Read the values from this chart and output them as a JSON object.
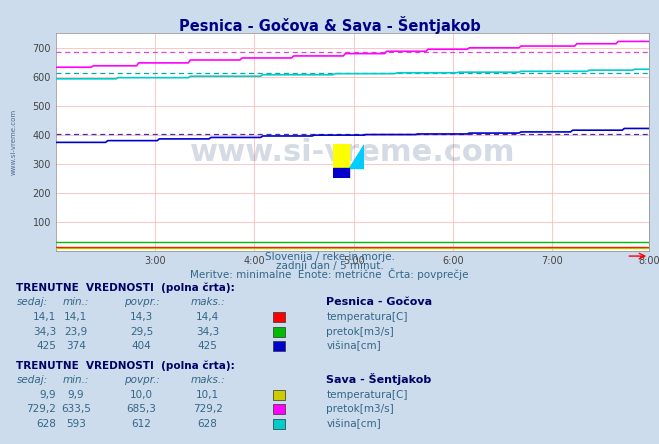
{
  "title": "Pesnica - Gočova & Sava - Šentjakob",
  "background_color": "#ccdcec",
  "plot_bg_color": "#ffffff",
  "grid_color": "#ffbbbb",
  "x_ticks": [
    "3:00",
    "4:00",
    "5:00",
    "6:00",
    "7:00",
    "8:00"
  ],
  "ylim": [
    0,
    750
  ],
  "n_points": 288,
  "subtitle1": "Slovenija / reke in morje.",
  "subtitle2": "zadnji dan / 5 minut.",
  "subtitle3": "Meritve: minimalne  Enote: metrične  Črta: povprečje",
  "watermark": "www.si-vreme.com",
  "pesnica_temp_val": 14.3,
  "pesnica_pretok_val": 29.5,
  "pesnica_visina_avg": 404,
  "sava_temp_val": 10.0,
  "sava_pretok_avg": 685.3,
  "sava_visina_avg": 612,
  "section1_title": "TRENUTNE  VREDNOSTI  (polna črta):",
  "section1_station": "Pesnica - Gočova",
  "section1_headers": [
    "sedaj:",
    "min.:",
    "povpr.:",
    "maks.:"
  ],
  "section1_rows": [
    {
      "sedaj": "14,1",
      "min": "14,1",
      "povpr": "14,3",
      "maks": "14,4",
      "label": "temperatura[C]",
      "color": "#ff0000"
    },
    {
      "sedaj": "34,3",
      "min": "23,9",
      "povpr": "29,5",
      "maks": "34,3",
      "label": "pretok[m3/s]",
      "color": "#00bb00"
    },
    {
      "sedaj": "425",
      "min": "374",
      "povpr": "404",
      "maks": "425",
      "label": "višina[cm]",
      "color": "#0000cc"
    }
  ],
  "section2_title": "TRENUTNE  VREDNOSTI  (polna črta):",
  "section2_station": "Sava - Šentjakob",
  "section2_headers": [
    "sedaj:",
    "min.:",
    "povpr.:",
    "maks.:"
  ],
  "section2_rows": [
    {
      "sedaj": "9,9",
      "min": "9,9",
      "povpr": "10,0",
      "maks": "10,1",
      "label": "temperatura[C]",
      "color": "#cccc00"
    },
    {
      "sedaj": "729,2",
      "min": "633,5",
      "povpr": "685,3",
      "maks": "729,2",
      "label": "pretok[m3/s]",
      "color": "#ff00ff"
    },
    {
      "sedaj": "628",
      "min": "593",
      "povpr": "612",
      "maks": "628",
      "label": "višina[cm]",
      "color": "#00cccc"
    }
  ]
}
